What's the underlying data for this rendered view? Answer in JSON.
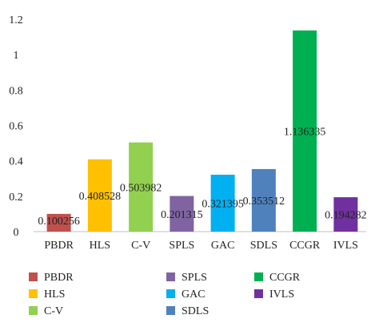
{
  "chart_data": {
    "type": "bar",
    "categories": [
      "PBDR",
      "HLS",
      "C-V",
      "SPLS",
      "GAC",
      "SDLS",
      "CCGR",
      "IVLS"
    ],
    "values": [
      0.100256,
      0.408528,
      0.503982,
      0.201315,
      0.321395,
      0.353512,
      1.136335,
      0.194282
    ],
    "data_labels": [
      "0.100256",
      "0.408528",
      "0.503982",
      "0.201315",
      "0.321395",
      "0.353512",
      "1.136335",
      "0.194282"
    ],
    "colors": [
      "#c0504d",
      "#ffc000",
      "#92d050",
      "#8064a2",
      "#00b0f0",
      "#4f81bd",
      "#00b050",
      "#7030a0"
    ],
    "ylim": [
      0,
      1.2
    ],
    "yticks": [
      "0",
      "0.2",
      "0.4",
      "0.6",
      "0.8",
      "1",
      "1.2"
    ],
    "ytick_values": [
      0,
      0.2,
      0.4,
      0.6,
      0.8,
      1,
      1.2
    ],
    "grid": false,
    "legend_placement": "bottom",
    "title": "",
    "xlabel": "",
    "ylabel": ""
  }
}
